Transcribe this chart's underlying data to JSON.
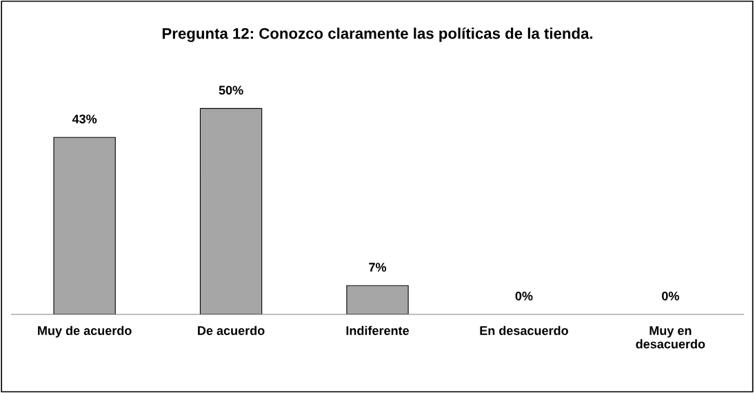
{
  "chart_data": {
    "type": "bar",
    "title": "Pregunta 12: Conozco claramente las políticas de la tienda.",
    "categories": [
      "Muy de acuerdo",
      "De acuerdo",
      "Indiferente",
      "En desacuerdo",
      "Muy en\ndesacuerdo"
    ],
    "values": [
      43,
      50,
      7,
      0,
      0
    ],
    "value_labels": [
      "43%",
      "50%",
      "7%",
      "0%",
      "0%"
    ],
    "color": "#a6a6a6",
    "grid": false
  }
}
